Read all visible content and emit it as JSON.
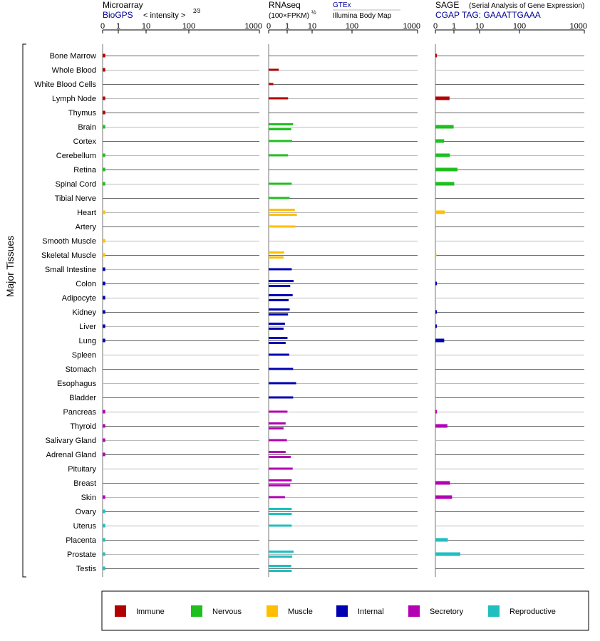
{
  "header": {
    "microarray": {
      "title": "Microarray",
      "source": "BioGPS",
      "unit": "< intensity >",
      "exponent": "2⁄3"
    },
    "rnaseq": {
      "title": "RNAseq",
      "unit": "(100×FPKM)",
      "exponent": "½",
      "source1": "GTEx",
      "source2": "Illumina Body Map"
    },
    "sage": {
      "title": "SAGE",
      "subtitle": "(Serial Analysis of Gene Expression)",
      "source": "CGAP TAG: GAAATTGAAA"
    }
  },
  "side_label": "Major Tissues",
  "colors": {
    "Immune": "#b30000",
    "Nervous": "#1fbf1f",
    "Muscle": "#ffbf00",
    "Internal": "#0000b3",
    "Secretory": "#b300b3",
    "Reproductive": "#1fbfbf"
  },
  "legend": [
    {
      "label": "Immune",
      "group": "Immune"
    },
    {
      "label": "Nervous",
      "group": "Nervous"
    },
    {
      "label": "Muscle",
      "group": "Muscle"
    },
    {
      "label": "Internal",
      "group": "Internal"
    },
    {
      "label": "Secretory",
      "group": "Secretory"
    },
    {
      "label": "Reproductive",
      "group": "Reproductive"
    }
  ],
  "chart_data": [
    {
      "type": "bar",
      "name": "Microarray",
      "scale": "power 2/3",
      "xlim": [
        0,
        1000
      ],
      "ticks": [
        0,
        1,
        10,
        100,
        1000
      ],
      "tick_labels": [
        "0",
        "1",
        "10",
        "100",
        "1000"
      ],
      "categories": [
        "Bone Marrow",
        "Whole Blood",
        "White Blood Cells",
        "Lymph Node",
        "Thymus",
        "Brain",
        "Cortex",
        "Cerebellum",
        "Retina",
        "Spinal Cord",
        "Tibial Nerve",
        "Heart",
        "Artery",
        "Smooth Muscle",
        "Skeletal Muscle",
        "Small Intestine",
        "Colon",
        "Adipocyte",
        "Kidney",
        "Liver",
        "Lung",
        "Spleen",
        "Stomach",
        "Esophagus",
        "Bladder",
        "Pancreas",
        "Thyroid",
        "Salivary Gland",
        "Adrenal Gland",
        "Pituitary",
        "Breast",
        "Skin",
        "Ovary",
        "Uterus",
        "Placenta",
        "Prostate",
        "Testis"
      ],
      "groups": [
        "Immune",
        "Immune",
        "Immune",
        "Immune",
        "Immune",
        "Nervous",
        "Nervous",
        "Nervous",
        "Nervous",
        "Nervous",
        "Nervous",
        "Muscle",
        "Muscle",
        "Muscle",
        "Muscle",
        "Internal",
        "Internal",
        "Internal",
        "Internal",
        "Internal",
        "Internal",
        "Internal",
        "Internal",
        "Internal",
        "Internal",
        "Secretory",
        "Secretory",
        "Secretory",
        "Secretory",
        "Secretory",
        "Secretory",
        "Secretory",
        "Reproductive",
        "Reproductive",
        "Reproductive",
        "Reproductive",
        "Reproductive"
      ],
      "values": [
        2.2,
        2.2,
        null,
        2.2,
        2.2,
        2.2,
        null,
        2.2,
        2.2,
        2.2,
        null,
        2.2,
        null,
        2.2,
        2.2,
        2.2,
        2.2,
        2.2,
        2.2,
        2.2,
        2.2,
        null,
        null,
        null,
        null,
        2.2,
        2.2,
        2.2,
        2.2,
        null,
        null,
        2.2,
        2.2,
        2.2,
        2.2,
        2.2,
        2.2
      ]
    },
    {
      "type": "bar",
      "name": "RNAseq",
      "scale": "square root",
      "xlim": [
        0,
        1000
      ],
      "ticks": [
        0,
        1,
        10,
        100,
        1000
      ],
      "tick_labels": [
        "0",
        "1",
        "10",
        "100",
        "1000"
      ],
      "series": [
        {
          "name": "GTEx",
          "values": [
            null,
            4.6,
            1.0,
            17.0,
            null,
            27.0,
            25.0,
            17.0,
            null,
            24.0,
            20.0,
            31.0,
            32.0,
            null,
            11.0,
            24.0,
            28.0,
            26.0,
            20.0,
            12.0,
            16.0,
            19.0,
            27.0,
            34.0,
            27.0,
            16.0,
            13.0,
            15.0,
            13.0,
            26.0,
            24.0,
            12.0,
            24.0,
            24.0,
            null,
            28.0,
            23.0
          ]
        },
        {
          "name": "Illumina Body Map",
          "values": [
            null,
            null,
            null,
            null,
            null,
            23.0,
            null,
            null,
            null,
            null,
            null,
            36.0,
            null,
            null,
            10.0,
            null,
            21.0,
            18.0,
            17.0,
            10.0,
            13.0,
            null,
            null,
            null,
            null,
            null,
            10.0,
            null,
            22.0,
            null,
            21.0,
            null,
            24.0,
            null,
            null,
            25.0,
            24.0
          ]
        }
      ]
    },
    {
      "type": "bar",
      "name": "SAGE",
      "scale": "square root",
      "xlim": [
        0,
        1000
      ],
      "ticks": [
        0,
        1,
        10,
        100,
        1000
      ],
      "tick_labels": [
        "0",
        "1",
        "10",
        "100",
        "1000"
      ],
      "values": [
        0.1,
        null,
        null,
        9.0,
        null,
        15.0,
        3.5,
        9.5,
        22.0,
        16.0,
        null,
        4.0,
        null,
        null,
        0.02,
        null,
        0.1,
        null,
        0.1,
        0.1,
        3.5,
        null,
        null,
        null,
        null,
        0.1,
        6.5,
        null,
        null,
        null,
        9.5,
        12.5,
        null,
        null,
        7.0,
        28.0,
        null
      ]
    }
  ]
}
